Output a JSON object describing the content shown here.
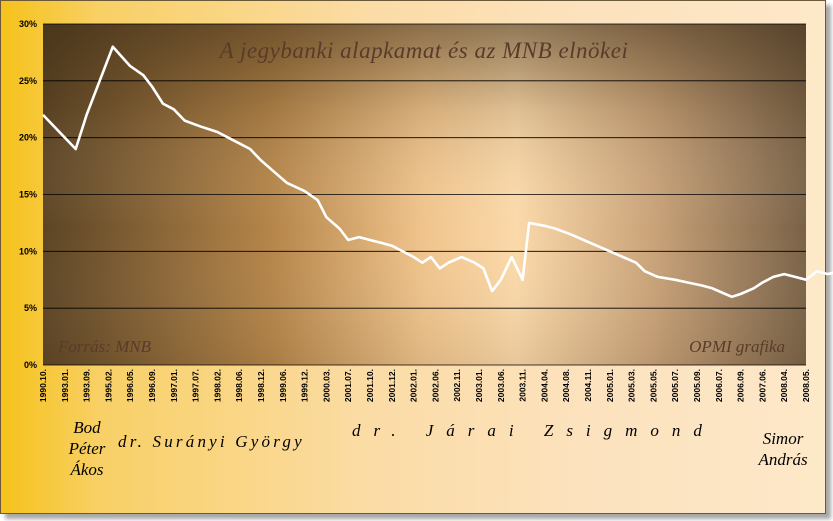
{
  "chart_data": {
    "type": "line",
    "title": "A jegybanki alapkamat és az MNB elnökei",
    "source_note": "Forrás: MNB",
    "credit_note": "OPMI grafika",
    "ylim": [
      0,
      30
    ],
    "yticks": [
      "0%",
      "5%",
      "10%",
      "15%",
      "20%",
      "25%",
      "30%"
    ],
    "grid": true,
    "x_tick_labels": [
      "1990.10.",
      "1993.01.",
      "1993.09.",
      "1995.02.",
      "1996.05.",
      "1996.09.",
      "1997.01.",
      "1997.07.",
      "1998.02.",
      "1998.06.",
      "1998.12.",
      "1999.06.",
      "1999.12.",
      "2000.03.",
      "2001.07.",
      "2001.10.",
      "2001.12.",
      "2002.01.",
      "2002.06.",
      "2002.11.",
      "2003.01.",
      "2003.06.",
      "2003.11.",
      "2004.04.",
      "2004.08.",
      "2004.11.",
      "2005.01.",
      "2005.03.",
      "2005.05.",
      "2005.07.",
      "2005.09.",
      "2006.07.",
      "2006.09.",
      "2007.06.",
      "2008.04.",
      "2008.05."
    ],
    "series": [
      {
        "color": "#ffffff",
        "values": [
          [
            0,
            22.0
          ],
          [
            1.5,
            19.0
          ],
          [
            2.0,
            22.0
          ],
          [
            3.2,
            28.0
          ],
          [
            4.0,
            26.3
          ],
          [
            4.6,
            25.5
          ],
          [
            5.0,
            24.5
          ],
          [
            5.5,
            23.0
          ],
          [
            6.0,
            22.5
          ],
          [
            6.5,
            21.5
          ],
          [
            7.2,
            21.0
          ],
          [
            8.0,
            20.5
          ],
          [
            8.5,
            20.0
          ],
          [
            9.0,
            19.5
          ],
          [
            9.5,
            19.0
          ],
          [
            10.0,
            18.0
          ],
          [
            10.6,
            17.0
          ],
          [
            11.2,
            16.0
          ],
          [
            12.0,
            15.3
          ],
          [
            12.6,
            14.5
          ],
          [
            13.0,
            13.0
          ],
          [
            13.6,
            12.0
          ],
          [
            14.0,
            11.0
          ],
          [
            14.5,
            11.25
          ],
          [
            15.0,
            11.0
          ],
          [
            15.5,
            10.75
          ],
          [
            16.0,
            10.5
          ],
          [
            16.5,
            10.0
          ],
          [
            17.0,
            9.5
          ],
          [
            17.4,
            9.0
          ],
          [
            17.8,
            9.5
          ],
          [
            18.2,
            8.5
          ],
          [
            18.6,
            9.0
          ],
          [
            19.2,
            9.5
          ],
          [
            19.8,
            9.0
          ],
          [
            20.2,
            8.5
          ],
          [
            20.6,
            6.5
          ],
          [
            21.0,
            7.5
          ],
          [
            21.5,
            9.5
          ],
          [
            22.0,
            7.5
          ],
          [
            22.3,
            12.5
          ],
          [
            23.0,
            12.25
          ],
          [
            23.5,
            12.0
          ],
          [
            24.2,
            11.5
          ],
          [
            24.8,
            11.0
          ],
          [
            25.4,
            10.5
          ],
          [
            26.0,
            10.0
          ],
          [
            26.6,
            9.5
          ],
          [
            27.2,
            9.0
          ],
          [
            27.6,
            8.25
          ],
          [
            28.2,
            7.75
          ],
          [
            29.0,
            7.5
          ],
          [
            29.6,
            7.25
          ],
          [
            30.2,
            7.0
          ],
          [
            30.7,
            6.75
          ],
          [
            31.3,
            6.25
          ],
          [
            31.6,
            6.0
          ],
          [
            32.0,
            6.25
          ],
          [
            32.6,
            6.75
          ],
          [
            33.0,
            7.25
          ],
          [
            33.5,
            7.75
          ],
          [
            34.0,
            8.0
          ],
          [
            34.5,
            7.75
          ],
          [
            35.0,
            7.5
          ],
          [
            35.5,
            8.25
          ],
          [
            36.0,
            8.0
          ],
          [
            37.0,
            8.5
          ]
        ]
      }
    ]
  },
  "presidents": [
    {
      "lines": [
        "Bod",
        "Péter",
        "Ákos"
      ]
    },
    {
      "lines": [
        "dr. Surányi György"
      ]
    },
    {
      "lines": [
        "dr. Járai Zsigmond"
      ]
    },
    {
      "lines": [
        "Simor",
        "András"
      ]
    }
  ]
}
